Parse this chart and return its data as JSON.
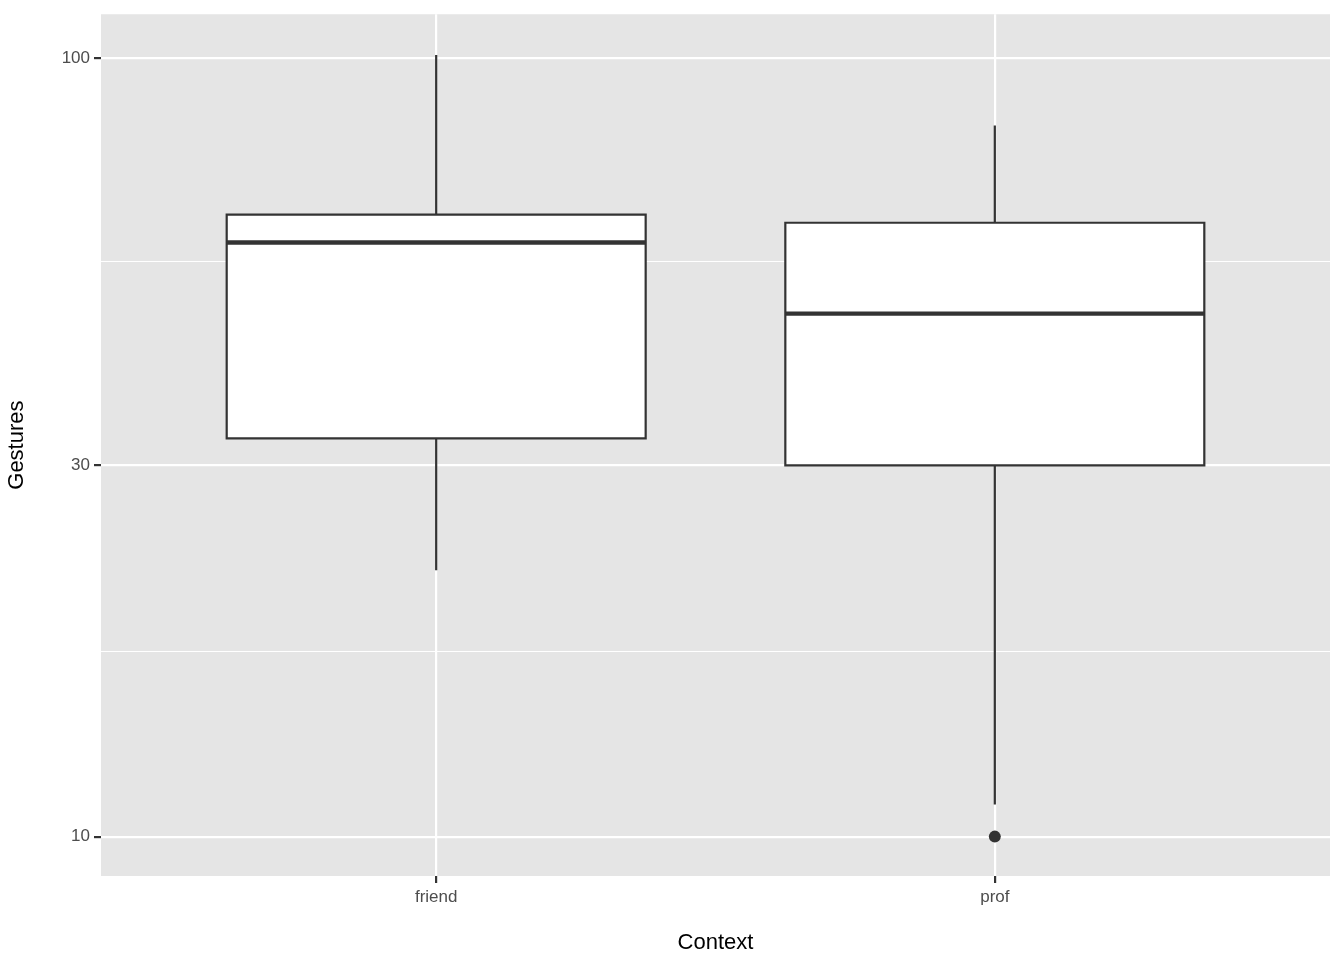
{
  "chart_data": {
    "type": "box",
    "xlabel": "Context",
    "ylabel": "Gestures",
    "categories": [
      "friend",
      "prof"
    ],
    "series": [
      {
        "color": "#ffffff",
        "boxes": [
          {
            "low": 22,
            "q1": 32.5,
            "median": 58,
            "q3": 63,
            "high": 101
          },
          {
            "low": 11,
            "q1": 30,
            "median": 47,
            "q3": 61.5,
            "high": 82,
            "outliers": [
              10
            ]
          }
        ]
      }
    ],
    "log": true,
    "ylim": [
      8.9,
      114
    ],
    "yticks": [
      10,
      {
        "value": 17.3,
        "label": null
      },
      30,
      {
        "value": 54.8,
        "label": null
      },
      100
    ],
    "grid": true
  }
}
